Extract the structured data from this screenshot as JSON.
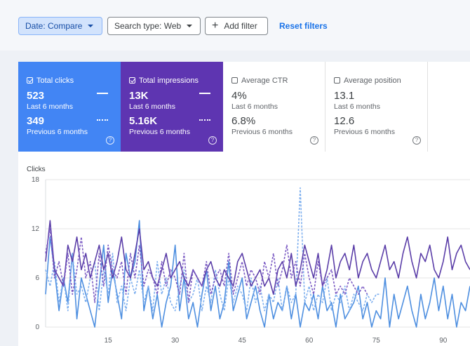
{
  "filters": {
    "date_label": "Date: Compare",
    "search_type_label": "Search type: Web",
    "add_filter_label": "Add filter",
    "reset_label": "Reset filters"
  },
  "metrics": [
    {
      "title": "Total clicks",
      "current": "523",
      "current_period": "Last 6 months",
      "previous": "349",
      "previous_period": "Previous 6 months",
      "selected": true,
      "color": "#4285f4"
    },
    {
      "title": "Total impressions",
      "current": "13K",
      "current_period": "Last 6 months",
      "previous": "5.16K",
      "previous_period": "Previous 6 months",
      "selected": true,
      "color": "#5e35b1"
    },
    {
      "title": "Average CTR",
      "current": "4%",
      "current_period": "Last 6 months",
      "previous": "6.8%",
      "previous_period": "Previous 6 months",
      "selected": false
    },
    {
      "title": "Average position",
      "current": "13.1",
      "current_period": "Last 6 months",
      "previous": "12.6",
      "previous_period": "Previous 6 months",
      "selected": false
    }
  ],
  "chart_data": {
    "type": "line",
    "ylabel": "Clicks",
    "ylim": [
      0,
      18
    ],
    "y_ticks": [
      0,
      6,
      12,
      18
    ],
    "x_ticks": [
      15,
      30,
      45,
      60,
      75,
      90
    ],
    "xlim": [
      1,
      96
    ],
    "grid": true,
    "series": [
      {
        "style": "clicks-current",
        "color": "#4e8fe0",
        "dashed": false,
        "values": [
          4,
          11,
          7,
          2,
          6,
          3,
          9,
          1,
          6,
          4,
          2,
          0,
          5,
          10,
          3,
          7,
          4,
          1,
          9,
          6,
          8,
          13,
          2,
          5,
          1,
          4,
          0,
          3,
          5,
          10,
          2,
          6,
          1,
          3,
          0,
          4,
          7,
          2,
          5,
          1,
          3,
          8,
          2,
          4,
          6,
          1,
          3,
          5,
          2,
          0,
          4,
          1,
          3,
          2,
          5,
          1,
          4,
          0,
          3,
          2,
          4,
          1,
          5,
          2,
          3,
          0,
          4,
          1,
          2,
          3,
          5,
          1,
          3,
          0,
          2,
          1,
          6,
          0,
          4,
          1,
          3,
          5,
          2,
          0,
          4,
          1,
          3,
          6,
          2,
          5,
          1,
          4,
          0,
          3,
          2,
          5
        ]
      },
      {
        "style": "clicks-previous",
        "color": "#7fb0ef",
        "dashed": true,
        "values": [
          7,
          5,
          8,
          3,
          6,
          2,
          9,
          4,
          5,
          3,
          6,
          8,
          2,
          7,
          4,
          9,
          3,
          5,
          2,
          6,
          4,
          7,
          3,
          5,
          2,
          8,
          4,
          6,
          3,
          2,
          5,
          7,
          3,
          4,
          6,
          2,
          5,
          3,
          7,
          4,
          2,
          6,
          3,
          5,
          4,
          2,
          6,
          3,
          5,
          2,
          4,
          3,
          6,
          2,
          5,
          3,
          4,
          17,
          3,
          5,
          2,
          4,
          3,
          6,
          2,
          4,
          3,
          5,
          2,
          4,
          3,
          2,
          4,
          3,
          4,
          4
        ]
      },
      {
        "style": "impressions-current",
        "color": "#5b3ea8",
        "dashed": false,
        "values": [
          8,
          13,
          7,
          6,
          5,
          10,
          8,
          11,
          7,
          9,
          6,
          8,
          10,
          7,
          9,
          6,
          8,
          11,
          7,
          6,
          9,
          12,
          7,
          8,
          6,
          5,
          7,
          9,
          6,
          7,
          8,
          6,
          5,
          7,
          6,
          5,
          7,
          8,
          6,
          5,
          7,
          6,
          5,
          8,
          9,
          7,
          5,
          6,
          7,
          5,
          6,
          4,
          7,
          8,
          6,
          9,
          5,
          7,
          10,
          8,
          6,
          9,
          5,
          7,
          10,
          6,
          8,
          9,
          7,
          10,
          6,
          8,
          9,
          7,
          6,
          8,
          10,
          7,
          8,
          6,
          9,
          11,
          8,
          6,
          9,
          8,
          10,
          7,
          6,
          8,
          11,
          7,
          9,
          10,
          8,
          7
        ]
      },
      {
        "style": "impressions-previous",
        "color": "#7c5cc4",
        "dashed": true,
        "values": [
          9,
          12,
          6,
          8,
          5,
          9,
          4,
          7,
          11,
          6,
          8,
          3,
          9,
          5,
          10,
          7,
          6,
          8,
          4,
          9,
          6,
          10,
          5,
          7,
          6,
          4,
          8,
          5,
          7,
          6,
          4,
          9,
          3,
          7,
          6,
          5,
          8,
          4,
          6,
          7,
          5,
          9,
          4,
          6,
          8,
          5,
          7,
          6,
          4,
          8,
          6,
          9,
          5,
          7,
          10,
          6,
          8,
          5,
          9,
          6,
          4,
          8,
          5,
          6,
          7,
          4,
          5,
          4,
          6,
          5,
          4,
          5,
          4
        ]
      }
    ]
  }
}
